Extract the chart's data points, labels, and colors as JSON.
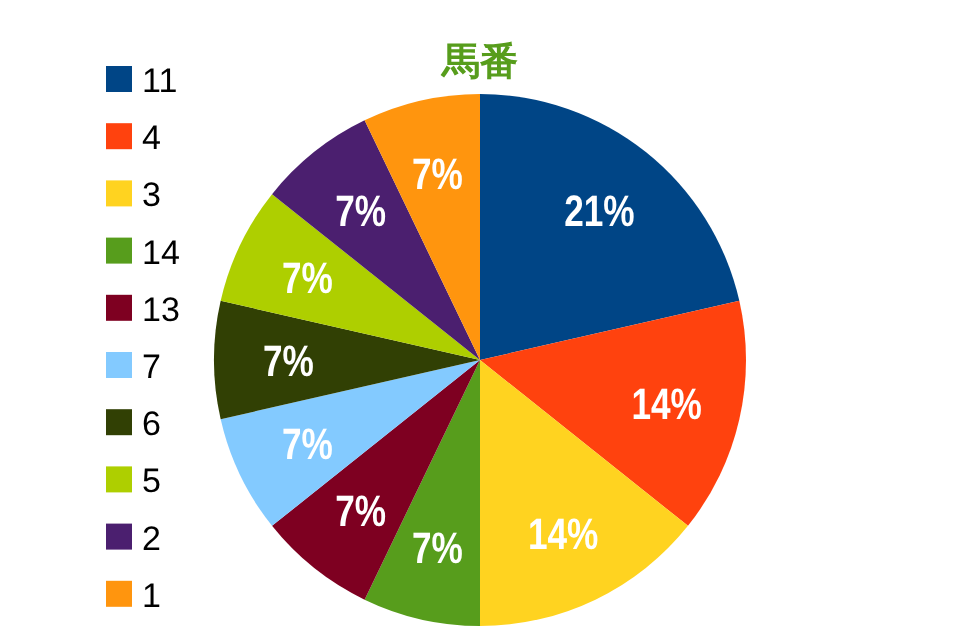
{
  "chart_data": {
    "type": "pie",
    "title": "馬番",
    "categories": [
      "11",
      "4",
      "3",
      "14",
      "13",
      "7",
      "6",
      "5",
      "2",
      "1"
    ],
    "values": [
      21,
      14,
      14,
      7,
      7,
      7,
      7,
      7,
      7,
      7
    ],
    "value_labels": [
      "21%",
      "14%",
      "14%",
      "7%",
      "7%",
      "7%",
      "7%",
      "7%",
      "7%",
      "7%"
    ],
    "colors": [
      "#004586",
      "#ff420e",
      "#ffd320",
      "#579d1c",
      "#7e0021",
      "#83caff",
      "#314004",
      "#aecf00",
      "#4b1f6f",
      "#ff950e"
    ],
    "legend": "left"
  }
}
